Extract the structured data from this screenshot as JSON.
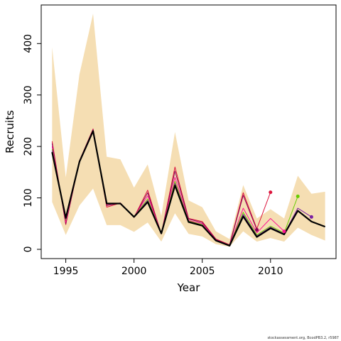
{
  "chart_data": {
    "type": "line",
    "xlabel": "Year",
    "ylabel": "Recruits",
    "xlim": [
      1993.2,
      2014.8
    ],
    "ylim": [
      -18,
      475
    ],
    "x_ticks": [
      1995,
      2000,
      2005,
      2010
    ],
    "y_ticks": [
      0,
      100,
      200,
      300,
      400
    ],
    "grid": false,
    "band": {
      "x": [
        1994,
        1995,
        1996,
        1997,
        1998,
        1999,
        2000,
        2001,
        2002,
        2003,
        2004,
        2005,
        2006,
        2007,
        2008,
        2009,
        2010,
        2011,
        2012,
        2013,
        2014
      ],
      "upper": [
        393,
        140,
        340,
        458,
        180,
        175,
        120,
        165,
        65,
        228,
        95,
        82,
        35,
        20,
        125,
        60,
        78,
        60,
        143,
        108,
        112
      ],
      "lower": [
        92,
        28,
        85,
        118,
        47,
        47,
        34,
        52,
        15,
        70,
        30,
        25,
        10,
        5,
        35,
        15,
        22,
        15,
        42,
        28,
        17
      ]
    },
    "series": [
      {
        "color": "#000000",
        "x": [
          1994,
          1995,
          1996,
          1997,
          1998,
          1999,
          2000,
          2001,
          2002,
          2003,
          2004,
          2005,
          2006,
          2007,
          2008,
          2009,
          2010,
          2011,
          2012,
          2013,
          2014
        ],
        "values": [
          189,
          61,
          170,
          230,
          89,
          89,
          63,
          92,
          31,
          124,
          53,
          46,
          17,
          7,
          64,
          24,
          41,
          29,
          75,
          54,
          44
        ]
      },
      {
        "color": "#DC143C",
        "x": [
          1994,
          1995,
          1996,
          1997,
          1998,
          1999,
          2000,
          2001,
          2002,
          2003,
          2004,
          2005,
          2006,
          2007,
          2008,
          2009,
          2010
        ],
        "values": [
          210,
          48,
          172,
          234,
          82,
          90,
          62,
          115,
          30,
          160,
          60,
          54,
          20,
          9,
          110,
          40,
          111
        ]
      },
      {
        "color": "#8B0057",
        "x": [
          1994,
          1995,
          1996,
          1997,
          1998,
          1999,
          2000,
          2001,
          2002,
          2003,
          2004,
          2005,
          2006,
          2007,
          2008,
          2009
        ],
        "values": [
          206,
          50,
          172,
          233,
          85,
          90,
          62,
          110,
          30,
          152,
          59,
          52,
          19,
          8,
          105,
          38
        ]
      },
      {
        "color": "#FF1493",
        "x": [
          1994,
          1995,
          1996,
          1997,
          1998,
          1999,
          2000,
          2001,
          2002,
          2003,
          2004,
          2005,
          2006,
          2007,
          2008,
          2009,
          2010,
          2011
        ],
        "values": [
          200,
          53,
          171,
          232,
          87,
          90,
          63,
          104,
          31,
          140,
          56,
          50,
          18,
          8,
          80,
          32,
          60,
          35
        ]
      },
      {
        "color": "#66CC00",
        "x": [
          1994,
          1995,
          1996,
          1997,
          1998,
          1999,
          2000,
          2001,
          2002,
          2003,
          2004,
          2005,
          2006,
          2007,
          2008,
          2009,
          2010,
          2011,
          2012
        ],
        "values": [
          195,
          57,
          170,
          231,
          88,
          89,
          63,
          98,
          31,
          132,
          55,
          48,
          17,
          8,
          72,
          28,
          45,
          32,
          103
        ]
      },
      {
        "color": "#7A1FA2",
        "x": [
          1994,
          1995,
          1996,
          1997,
          1998,
          1999,
          2000,
          2001,
          2002,
          2003,
          2004,
          2005,
          2006,
          2007,
          2008,
          2009,
          2010,
          2011,
          2012,
          2013
        ],
        "values": [
          192,
          59,
          170,
          230,
          89,
          89,
          63,
          95,
          31,
          128,
          54,
          47,
          17,
          7,
          68,
          26,
          43,
          30,
          80,
          63
        ]
      }
    ]
  },
  "footnote": "stockassessment.org, BcodPB3.2, r5987"
}
